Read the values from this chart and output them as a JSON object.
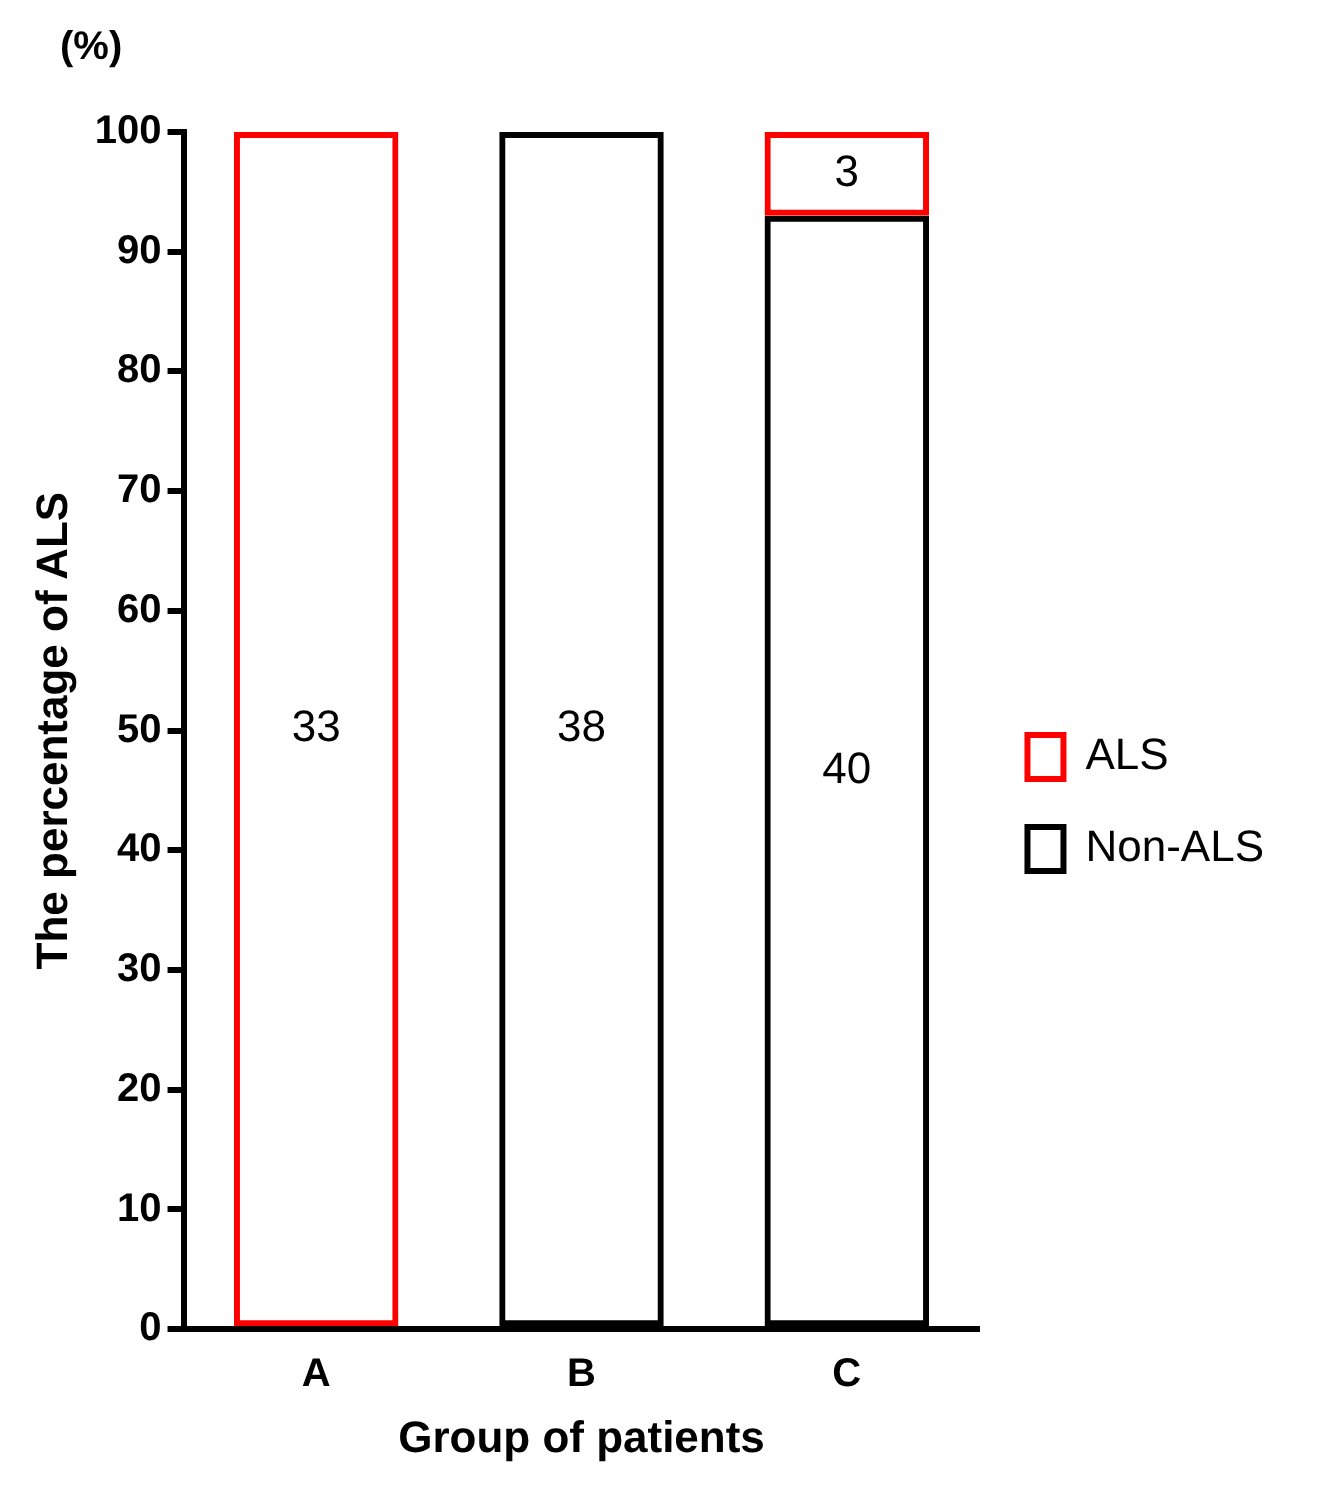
{
  "chart_data": {
    "type": "bar",
    "stacked": true,
    "xlabel": "Group of patients",
    "ylabel": "The percentage of ALS",
    "annotations": [
      "(%)",
      "33",
      "38",
      "40",
      "3"
    ],
    "categories": [
      "A",
      "B",
      "C"
    ],
    "series": [
      {
        "name": "Non-ALS",
        "color": "#000000",
        "values": [
          0,
          100,
          93
        ]
      },
      {
        "name": "ALS",
        "color": "#ff0000",
        "values": [
          100,
          0,
          7
        ]
      }
    ],
    "ylim": [
      0,
      100
    ],
    "yticks": [
      0,
      10,
      20,
      30,
      40,
      50,
      60,
      70,
      80,
      90,
      100
    ],
    "grid": false,
    "legend": "right"
  }
}
